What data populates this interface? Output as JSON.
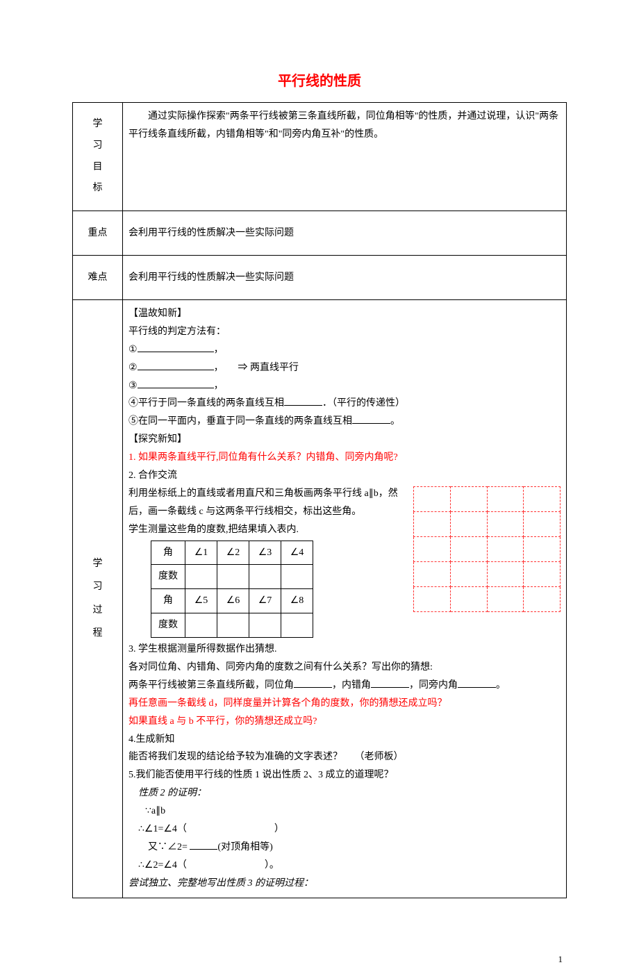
{
  "title": "平行线的性质",
  "rows": {
    "objective": {
      "label": "学习目标",
      "text": "　　通过实际操作探索\"两条平行线被第三条直线所截，同位角相等\"的性质，并通过说理，认识\"两条平行线条直线所截，内错角相等\"和\"同旁内角互补\"的性质。"
    },
    "keypoint": {
      "label": "重点",
      "text": "会利用平行线的性质解决一些实际问题"
    },
    "difficulty": {
      "label": "难点",
      "text": "会利用平行线的性质解决一些实际问题"
    },
    "process": {
      "label_chars": [
        "学",
        "习",
        "过",
        "程"
      ],
      "sec1_title": "【温故知新】",
      "sec1_l1": "平行线的判定方法有：",
      "sec1_l2": "①",
      "sec1_l2b": "，",
      "sec1_l3": "②",
      "sec1_l3b": "，　　⇒ 两直线平行",
      "sec1_l4": "③",
      "sec1_l4b": "，",
      "sec1_l5a": "④平行于同一条直线的两条直线互相",
      "sec1_l5b": "．（平行的传递性）",
      "sec1_l6a": "⑤在同一平面内，垂直于同一条直线的两条直线互相",
      "sec1_l6b": "。",
      "sec2_title": "【探究新知】",
      "sec2_l1": "1. 如果两条直线平行,同位角有什么关系？内错角、同旁内角呢?",
      "sec2_l2": "2. 合作交流",
      "sec2_l3": "利用坐标纸上的直线或者用直尺和三角板画两条平行线 a∥b，然后，画一条截线 c 与这两条平行线相交，标出这些角。",
      "sec2_l4": "学生测量这些角的度数,把结果填入表内.",
      "table_headers": [
        "角",
        "∠1",
        "∠2",
        "∠3",
        "∠4"
      ],
      "table_row2": "度数",
      "table_headers2": [
        "角",
        "∠5",
        "∠6",
        "∠7",
        "∠8"
      ],
      "table_row4": "度数",
      "sec3_l1": "3. 学生根据测量所得数据作出猜想.",
      "sec3_l2": "各对同位角、内错角、同旁内角的度数之间有什么关系？写出你的猜想:",
      "sec3_l3a": "两条平行线被第三条直线所截，同位角",
      "sec3_l3b": "，内错角",
      "sec3_l3c": "，同旁内角",
      "sec3_l3d": "。",
      "sec3_l4": "再任意画一条截线 d，同样度量并计算各个角的度数，你的猜想还成立吗？",
      "sec3_l5": "如果直线 a 与 b 不平行，你的猜想还成立吗?",
      "sec4_l1": "4.生成新知",
      "sec4_l2": "能否将我们发现的结论给予较为准确的文字表述？　  （老师板）",
      "sec4_l3": "5.我们能否使用平行线的性质 1 说出性质 2、3 成立的道理呢？",
      "sec4_l4": "性质 2 的证明：",
      "sec4_l5": "∵a∥b",
      "sec4_l6a": "∴∠1=∠4（",
      "sec4_l6b": "）",
      "sec4_l7a": "又∵∠2= ",
      "sec4_l7b": "(对顶角相等)",
      "sec4_l8a": "∴∠2=∠4（",
      "sec4_l8b": "）。",
      "sec4_l9": "尝试独立、完整地写出性质 3 的证明过程："
    }
  },
  "page_number": "1",
  "colors": {
    "text": "#000000",
    "red": "#ff0000",
    "grid_border": "#ff3333",
    "background": "#ffffff",
    "table_border": "#000000"
  },
  "fonts": {
    "title_size": 20,
    "body_size": 14
  }
}
